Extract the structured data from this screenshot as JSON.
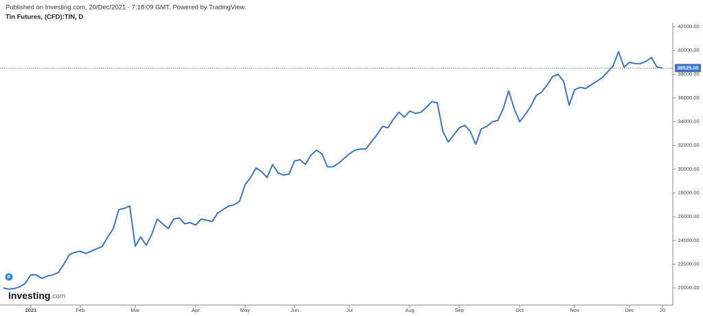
{
  "header": {
    "published": "Published on Investing.com, 20/Dec/2021 - 7:18:09 GMT, Powered by TradingView.",
    "instrument": "Tin Futures, (CFD):TIN, D"
  },
  "logo": {
    "brand": "Investing",
    "suffix": ".com"
  },
  "event_marker": "P",
  "chart_data": {
    "type": "line",
    "color": "#3a75c4",
    "categories": [
      null,
      null,
      null,
      null,
      null,
      "2021",
      null,
      null,
      null,
      null,
      null,
      null,
      null,
      null,
      "Feb",
      null,
      null,
      null,
      null,
      null,
      null,
      null,
      null,
      null,
      "Mar",
      null,
      null,
      null,
      null,
      null,
      null,
      null,
      null,
      null,
      null,
      "Apr",
      null,
      null,
      null,
      null,
      null,
      null,
      null,
      null,
      "May",
      null,
      null,
      null,
      null,
      null,
      null,
      null,
      null,
      "Jun",
      null,
      null,
      null,
      null,
      null,
      null,
      null,
      null,
      null,
      "Jul",
      null,
      null,
      null,
      null,
      null,
      null,
      null,
      null,
      null,
      null,
      "Aug",
      null,
      null,
      null,
      null,
      null,
      null,
      null,
      null,
      "Sep",
      null,
      null,
      null,
      null,
      null,
      null,
      null,
      null,
      null,
      null,
      "Oct",
      null,
      null,
      null,
      null,
      null,
      null,
      null,
      null,
      null,
      "Nov",
      null,
      null,
      null,
      null,
      null,
      null,
      null,
      null,
      null,
      "Dec",
      null,
      null,
      null,
      null,
      null,
      "20"
    ],
    "values": [
      20000,
      19900,
      19950,
      20100,
      20400,
      21100,
      21100,
      20800,
      21000,
      21100,
      21300,
      22000,
      22800,
      23000,
      23100,
      22900,
      23100,
      23300,
      23500,
      24300,
      25000,
      26600,
      26700,
      26900,
      23500,
      24300,
      23600,
      24500,
      25800,
      25400,
      25000,
      25800,
      25900,
      25400,
      25500,
      25300,
      25800,
      25700,
      25600,
      26300,
      26600,
      26900,
      27000,
      27300,
      28700,
      29300,
      30100,
      29800,
      29300,
      30400,
      29700,
      29500,
      29600,
      30700,
      30800,
      30400,
      31200,
      31600,
      31300,
      30200,
      30200,
      30500,
      30900,
      31300,
      31600,
      31700,
      31700,
      32300,
      32900,
      33600,
      33500,
      34200,
      34800,
      34400,
      34900,
      34700,
      34800,
      35200,
      35700,
      35600,
      33200,
      32300,
      32900,
      33500,
      33700,
      33200,
      32100,
      33400,
      33600,
      34000,
      34100,
      35100,
      36600,
      35100,
      34000,
      34600,
      35300,
      36200,
      36500,
      37100,
      37800,
      38000,
      37400,
      35400,
      36700,
      36900,
      36800,
      37100,
      37400,
      37700,
      38200,
      38700,
      39900,
      38600,
      39000,
      38900,
      38900,
      39100,
      39400,
      38600,
      38525
    ],
    "ylim": [
      18560,
      42350
    ],
    "yticks": [
      {
        "value": 20000,
        "label": "20000.00"
      },
      {
        "value": 22000,
        "label": "22000.00"
      },
      {
        "value": 24000,
        "label": "24000.00"
      },
      {
        "value": 26000,
        "label": "26000.00"
      },
      {
        "value": 28000,
        "label": "28000.00"
      },
      {
        "value": 30000,
        "label": "30000.00"
      },
      {
        "value": 32000,
        "label": "32000.00"
      },
      {
        "value": 34000,
        "label": "34000.00"
      },
      {
        "value": 36000,
        "label": "36000.00"
      },
      {
        "value": 38000,
        "label": "38000.00"
      },
      {
        "value": 40000,
        "label": "40000.00"
      },
      {
        "value": 42000,
        "label": "42000.00"
      }
    ],
    "last_price": {
      "value": 38525,
      "label": "38525.00"
    }
  }
}
